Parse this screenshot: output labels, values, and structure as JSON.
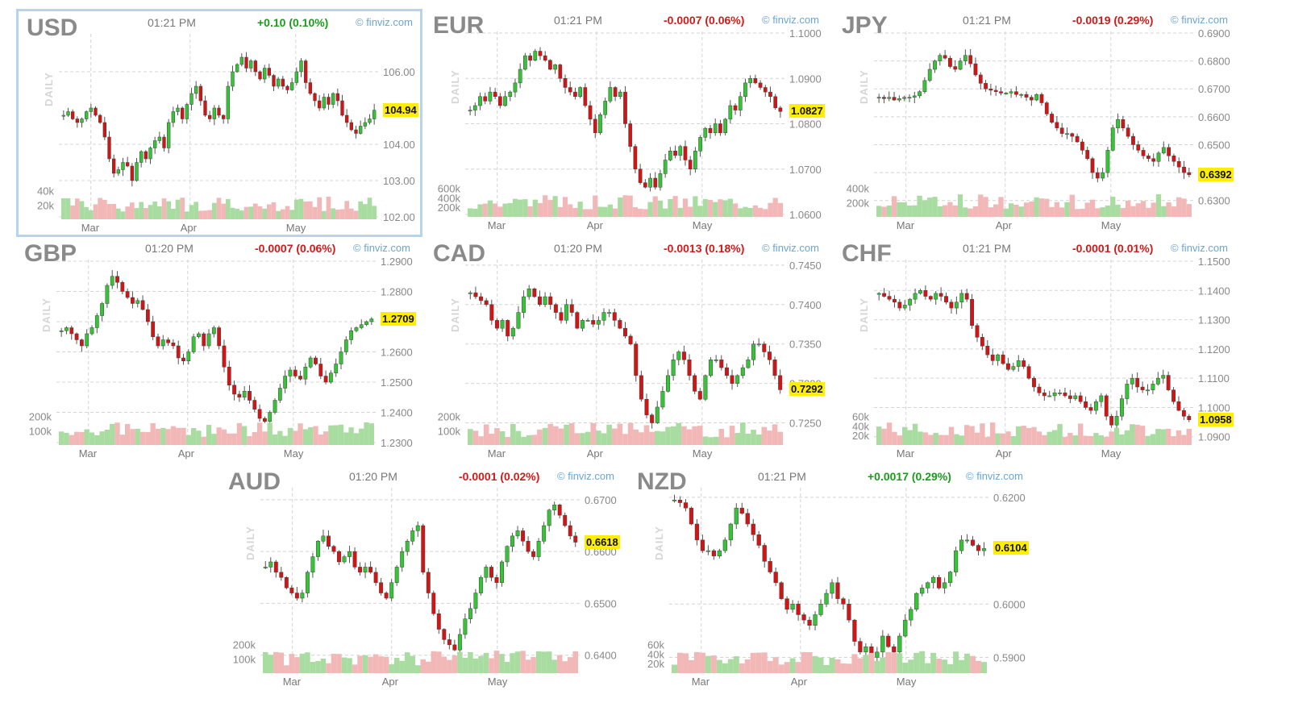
{
  "panels": [
    {
      "symbol": "USD",
      "time": "01:21 PM",
      "change": "+0.10 (0.10%)",
      "direction": "up",
      "credit": "© finviz.com",
      "daily": "DAILY",
      "last": "104.94",
      "selected": true,
      "chart_data": {
        "type": "candlestick",
        "x_ticks": [
          "Mar",
          "Apr",
          "May"
        ],
        "y_ticks": [
          "106.00",
          "104.00",
          "103.00",
          "102.00"
        ],
        "y_tick_values": [
          106,
          104,
          103,
          102
        ],
        "ylim": [
          102,
          107
        ],
        "volume_ticks": [
          "40k",
          "20k"
        ],
        "volume_tick_values": [
          40000,
          20000
        ],
        "vol_max": 60000,
        "closes": [
          104.8,
          104.9,
          104.7,
          104.6,
          104.7,
          104.9,
          105.0,
          104.8,
          104.6,
          104.2,
          103.6,
          103.2,
          103.3,
          103.5,
          103.4,
          103.0,
          103.5,
          103.8,
          103.6,
          103.9,
          104.1,
          104.2,
          103.9,
          104.6,
          104.9,
          105.0,
          104.7,
          105.1,
          105.4,
          105.6,
          105.2,
          104.8,
          104.7,
          105.0,
          104.8,
          104.7,
          105.6,
          106.0,
          106.2,
          106.4,
          106.1,
          106.3,
          106.0,
          105.8,
          106.1,
          105.9,
          105.6,
          105.8,
          105.6,
          105.5,
          105.7,
          106.0,
          106.3,
          105.7,
          105.4,
          105.2,
          105.0,
          105.3,
          105.1,
          105.4,
          105.2,
          104.8,
          104.6,
          104.4,
          104.3,
          104.5,
          104.6,
          104.7,
          104.94
        ]
      }
    },
    {
      "symbol": "EUR",
      "time": "01:21 PM",
      "change": "-0.0007 (0.06%)",
      "direction": "down",
      "credit": "© finviz.com",
      "daily": "DAILY",
      "last": "1.0827",
      "chart_data": {
        "type": "candlestick",
        "x_ticks": [
          "Mar",
          "Apr",
          "May"
        ],
        "y_ticks": [
          "1.1000",
          "1.0900",
          "1.0800",
          "1.0700",
          "1.0600"
        ],
        "y_tick_values": [
          1.1,
          1.09,
          1.08,
          1.07,
          1.06
        ],
        "ylim": [
          1.06,
          1.1
        ],
        "volume_ticks": [
          "600k",
          "400k",
          "200k"
        ],
        "volume_tick_values": [
          600000,
          400000,
          200000
        ],
        "vol_max": 900000,
        "closes": [
          1.083,
          1.084,
          1.086,
          1.085,
          1.087,
          1.086,
          1.084,
          1.086,
          1.087,
          1.089,
          1.092,
          1.095,
          1.094,
          1.096,
          1.095,
          1.094,
          1.092,
          1.093,
          1.09,
          1.088,
          1.087,
          1.086,
          1.088,
          1.084,
          1.081,
          1.078,
          1.082,
          1.085,
          1.088,
          1.086,
          1.087,
          1.08,
          1.075,
          1.07,
          1.067,
          1.066,
          1.068,
          1.066,
          1.069,
          1.072,
          1.074,
          1.073,
          1.075,
          1.072,
          1.07,
          1.074,
          1.077,
          1.079,
          1.078,
          1.08,
          1.078,
          1.081,
          1.084,
          1.083,
          1.086,
          1.089,
          1.09,
          1.089,
          1.088,
          1.087,
          1.086,
          1.0835,
          1.0827
        ]
      }
    },
    {
      "symbol": "JPY",
      "time": "01:21 PM",
      "change": "-0.0019 (0.29%)",
      "direction": "down",
      "credit": "© finviz.com",
      "daily": "DAILY",
      "last": "0.6392",
      "chart_data": {
        "type": "candlestick",
        "x_ticks": [
          "Mar",
          "Apr",
          "May"
        ],
        "y_ticks": [
          "0.6900",
          "0.6800",
          "0.6700",
          "0.6600",
          "0.6500",
          "0.6400",
          "0.6300"
        ],
        "y_tick_values": [
          0.69,
          0.68,
          0.67,
          0.66,
          0.65,
          0.64,
          0.63
        ],
        "ylim": [
          0.625,
          0.69
        ],
        "volume_ticks": [
          "400k",
          "200k"
        ],
        "volume_tick_values": [
          400000,
          200000
        ],
        "vol_max": 600000,
        "closes": [
          0.667,
          0.6665,
          0.667,
          0.666,
          0.6665,
          0.667,
          0.667,
          0.6675,
          0.669,
          0.673,
          0.677,
          0.68,
          0.682,
          0.681,
          0.678,
          0.677,
          0.68,
          0.682,
          0.679,
          0.675,
          0.672,
          0.67,
          0.6695,
          0.669,
          0.6685,
          0.6685,
          0.669,
          0.668,
          0.668,
          0.667,
          0.666,
          0.668,
          0.665,
          0.661,
          0.658,
          0.656,
          0.654,
          0.654,
          0.653,
          0.651,
          0.648,
          0.645,
          0.64,
          0.638,
          0.64,
          0.648,
          0.656,
          0.659,
          0.656,
          0.653,
          0.65,
          0.648,
          0.646,
          0.645,
          0.644,
          0.647,
          0.649,
          0.646,
          0.644,
          0.642,
          0.64,
          0.6392
        ]
      }
    },
    {
      "symbol": "GBP",
      "time": "01:20 PM",
      "change": "-0.0007 (0.06%)",
      "direction": "down",
      "credit": "© finviz.com",
      "daily": "DAILY",
      "last": "1.2709",
      "chart_data": {
        "type": "candlestick",
        "x_ticks": [
          "Mar",
          "Apr",
          "May"
        ],
        "y_ticks": [
          "1.2900",
          "1.2800",
          "1.2700",
          "1.2600",
          "1.2500",
          "1.2400",
          "1.2300"
        ],
        "y_tick_values": [
          1.29,
          1.28,
          1.27,
          1.26,
          1.25,
          1.24,
          1.23
        ],
        "ylim": [
          1.23,
          1.29
        ],
        "volume_ticks": [
          "200k",
          "100k"
        ],
        "volume_tick_values": [
          200000,
          100000
        ],
        "vol_max": 300000,
        "closes": [
          1.267,
          1.268,
          1.266,
          1.264,
          1.262,
          1.266,
          1.268,
          1.272,
          1.276,
          1.282,
          1.285,
          1.283,
          1.28,
          1.278,
          1.276,
          1.277,
          1.274,
          1.27,
          1.265,
          1.262,
          1.264,
          1.263,
          1.262,
          1.258,
          1.257,
          1.26,
          1.265,
          1.266,
          1.262,
          1.266,
          1.268,
          1.262,
          1.255,
          1.249,
          1.246,
          1.245,
          1.247,
          1.244,
          1.241,
          1.238,
          1.237,
          1.24,
          1.244,
          1.248,
          1.252,
          1.254,
          1.252,
          1.251,
          1.255,
          1.258,
          1.256,
          1.252,
          1.25,
          1.253,
          1.256,
          1.26,
          1.264,
          1.267,
          1.268,
          1.269,
          1.27,
          1.2709
        ]
      }
    },
    {
      "symbol": "CAD",
      "time": "01:20 PM",
      "change": "-0.0013 (0.18%)",
      "direction": "down",
      "credit": "© finviz.com",
      "daily": "DAILY",
      "last": "0.7292",
      "chart_data": {
        "type": "candlestick",
        "x_ticks": [
          "Mar",
          "Apr",
          "May"
        ],
        "y_ticks": [
          "0.7450",
          "0.7400",
          "0.7350",
          "0.7300",
          "0.7250"
        ],
        "y_tick_values": [
          0.745,
          0.74,
          0.735,
          0.73,
          0.725
        ],
        "ylim": [
          0.7225,
          0.7455
        ],
        "volume_ticks": [
          "200k",
          "100k"
        ],
        "volume_tick_values": [
          200000,
          100000
        ],
        "vol_max": 300000,
        "closes": [
          0.7415,
          0.741,
          0.7405,
          0.74,
          0.738,
          0.737,
          0.738,
          0.736,
          0.737,
          0.739,
          0.741,
          0.742,
          0.741,
          0.74,
          0.741,
          0.74,
          0.739,
          0.738,
          0.74,
          0.739,
          0.737,
          0.738,
          0.738,
          0.7375,
          0.738,
          0.739,
          0.739,
          0.738,
          0.737,
          0.736,
          0.735,
          0.731,
          0.728,
          0.726,
          0.725,
          0.727,
          0.729,
          0.731,
          0.733,
          0.734,
          0.733,
          0.731,
          0.729,
          0.728,
          0.731,
          0.733,
          0.733,
          0.732,
          0.731,
          0.73,
          0.731,
          0.732,
          0.733,
          0.735,
          0.735,
          0.734,
          0.733,
          0.731,
          0.7292
        ]
      }
    },
    {
      "symbol": "CHF",
      "time": "01:21 PM",
      "change": "-0.0001 (0.01%)",
      "direction": "down",
      "credit": "© finviz.com",
      "daily": "DAILY",
      "last": "1.0958",
      "chart_data": {
        "type": "candlestick",
        "x_ticks": [
          "Mar",
          "Apr",
          "May"
        ],
        "y_ticks": [
          "1.1500",
          "1.1400",
          "1.1300",
          "1.1200",
          "1.1100",
          "1.1000",
          "1.0900"
        ],
        "y_tick_values": [
          1.15,
          1.14,
          1.13,
          1.12,
          1.11,
          1.1,
          1.09
        ],
        "ylim": [
          1.088,
          1.15
        ],
        "volume_ticks": [
          "60k",
          "40k",
          "20k"
        ],
        "volume_tick_values": [
          60000,
          40000,
          20000
        ],
        "vol_max": 90000,
        "closes": [
          1.139,
          1.138,
          1.137,
          1.136,
          1.134,
          1.135,
          1.137,
          1.139,
          1.14,
          1.138,
          1.137,
          1.139,
          1.138,
          1.136,
          1.134,
          1.136,
          1.139,
          1.137,
          1.128,
          1.124,
          1.121,
          1.118,
          1.116,
          1.118,
          1.115,
          1.113,
          1.114,
          1.116,
          1.114,
          1.11,
          1.107,
          1.105,
          1.104,
          1.104,
          1.105,
          1.105,
          1.104,
          1.103,
          1.104,
          1.102,
          1.1,
          1.099,
          1.102,
          1.104,
          1.097,
          1.094,
          1.097,
          1.103,
          1.108,
          1.11,
          1.107,
          1.106,
          1.106,
          1.108,
          1.11,
          1.111,
          1.106,
          1.102,
          1.099,
          1.097,
          1.0958
        ]
      }
    },
    {
      "symbol": "AUD",
      "time": "01:20 PM",
      "change": "-0.0001 (0.02%)",
      "direction": "down",
      "credit": "© finviz.com",
      "daily": "DAILY",
      "last": "0.6618",
      "chart_data": {
        "type": "candlestick",
        "x_ticks": [
          "Mar",
          "Apr",
          "May"
        ],
        "y_ticks": [
          "0.6700",
          "0.6600",
          "0.6500",
          "0.6400"
        ],
        "y_tick_values": [
          0.67,
          0.66,
          0.65,
          0.64
        ],
        "ylim": [
          0.637,
          0.672
        ],
        "volume_ticks": [
          "200k",
          "100k"
        ],
        "volume_tick_values": [
          200000,
          100000
        ],
        "vol_max": 300000,
        "closes": [
          0.657,
          0.658,
          0.656,
          0.655,
          0.653,
          0.652,
          0.651,
          0.652,
          0.656,
          0.659,
          0.662,
          0.663,
          0.661,
          0.66,
          0.658,
          0.659,
          0.66,
          0.657,
          0.656,
          0.657,
          0.656,
          0.654,
          0.652,
          0.651,
          0.654,
          0.657,
          0.66,
          0.662,
          0.664,
          0.665,
          0.656,
          0.652,
          0.648,
          0.645,
          0.643,
          0.642,
          0.641,
          0.644,
          0.647,
          0.649,
          0.652,
          0.655,
          0.657,
          0.655,
          0.654,
          0.658,
          0.661,
          0.663,
          0.664,
          0.662,
          0.66,
          0.659,
          0.662,
          0.665,
          0.668,
          0.669,
          0.667,
          0.665,
          0.663,
          0.6618
        ]
      }
    },
    {
      "symbol": "NZD",
      "time": "01:21 PM",
      "change": "+0.0017 (0.29%)",
      "direction": "up",
      "credit": "© finviz.com",
      "daily": "DAILY",
      "last": "0.6104",
      "chart_data": {
        "type": "candlestick",
        "x_ticks": [
          "Mar",
          "Apr",
          "May"
        ],
        "y_ticks": [
          "0.6200",
          "0.6000",
          "0.5900"
        ],
        "y_tick_values": [
          0.62,
          0.6,
          0.59
        ],
        "ylim": [
          0.5875,
          0.6215
        ],
        "volume_ticks": [
          "60k",
          "40k",
          "20k"
        ],
        "volume_tick_values": [
          60000,
          40000,
          20000
        ],
        "vol_max": 90000,
        "closes": [
          0.6195,
          0.619,
          0.618,
          0.615,
          0.612,
          0.61,
          0.61,
          0.609,
          0.61,
          0.612,
          0.615,
          0.618,
          0.617,
          0.615,
          0.613,
          0.611,
          0.608,
          0.606,
          0.604,
          0.601,
          0.599,
          0.6,
          0.598,
          0.597,
          0.596,
          0.598,
          0.6,
          0.602,
          0.604,
          0.601,
          0.6,
          0.597,
          0.593,
          0.591,
          0.592,
          0.59,
          0.591,
          0.594,
          0.592,
          0.591,
          0.594,
          0.597,
          0.599,
          0.602,
          0.603,
          0.604,
          0.605,
          0.603,
          0.604,
          0.606,
          0.61,
          0.612,
          0.612,
          0.611,
          0.61,
          0.6104
        ]
      }
    }
  ]
}
